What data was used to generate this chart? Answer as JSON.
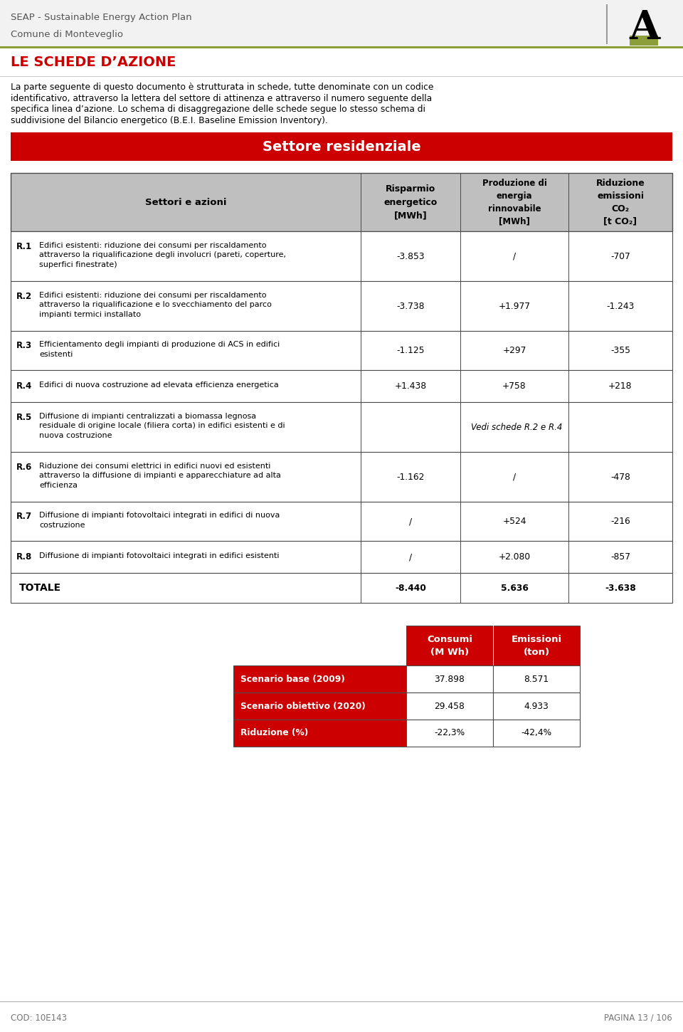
{
  "header_line1": "SEAP - Sustainable Energy Action Plan",
  "header_line2": "Comune di Monteveglio",
  "header_sep_color": "#8B9E3A",
  "section_title": "Settore residenziale",
  "section_bg": "#CC0000",
  "section_fg": "#FFFFFF",
  "page_title": "LE SCHEDE D’AZIONE",
  "page_title_color": "#CC0000",
  "intro_lines": [
    "La parte seguente di questo documento è strutturata in schede, tutte denominate con un codice",
    "identificativo, attraverso la lettera del settore di attinenza e attraverso il numero seguente della",
    "specifica linea d’azione. Lo schema di disaggregazione delle schede segue lo stesso schema di",
    "suddivisione del Bilancio energetico (B.E.I. Baseline Emission Inventory)."
  ],
  "col_header_bg": "#BFBFBF",
  "rows": [
    {
      "id": "R.1",
      "desc_lines": [
        "Edifici esistenti: riduzione dei consumi per riscaldamento",
        "attraverso la riqualificazione degli involucri (pareti, coperture,",
        "superfici finestrate)"
      ],
      "risparmio": "-3.853",
      "produzione": "/",
      "riduzione": "-707",
      "rh": 70
    },
    {
      "id": "R.2",
      "desc_lines": [
        "Edifici esistenti: riduzione dei consumi per riscaldamento",
        "attraverso la riqualificazione e lo svecchiamento del parco",
        "impianti termici installato"
      ],
      "risparmio": "-3.738",
      "produzione": "+1.977",
      "riduzione": "-1.243",
      "rh": 70
    },
    {
      "id": "R.3",
      "desc_lines": [
        "Efficientamento degli impianti di produzione di ACS in edifici",
        "esistenti"
      ],
      "risparmio": "-1.125",
      "produzione": "+297",
      "riduzione": "-355",
      "rh": 55
    },
    {
      "id": "R.4",
      "desc_lines": [
        "Edifici di nuova costruzione ad elevata efficienza energetica"
      ],
      "risparmio": "+1.438",
      "produzione": "+758",
      "riduzione": "+218",
      "rh": 45
    },
    {
      "id": "R.5",
      "desc_lines": [
        "Diffusione di impianti centralizzati a biomassa legnosa",
        "residuale di origine locale (filiera corta) in edifici esistenti e di",
        "nuova costruzione"
      ],
      "risparmio": "",
      "produzione": "Vedi schede R.2 e R.4",
      "riduzione": "",
      "span": true,
      "rh": 70
    },
    {
      "id": "R.6",
      "desc_lines": [
        "Riduzione dei consumi elettrici in edifici nuovi ed esistenti",
        "attraverso la diffusione di impianti e apparecchiature ad alta",
        "efficienza"
      ],
      "risparmio": "-1.162",
      "produzione": "/",
      "riduzione": "-478",
      "rh": 70
    },
    {
      "id": "R.7",
      "desc_lines": [
        "Diffusione di impianti fotovoltaici integrati in edifici di nuova",
        "costruzione"
      ],
      "risparmio": "/",
      "produzione": "+524",
      "riduzione": "-216",
      "rh": 55
    },
    {
      "id": "R.8",
      "desc_lines": [
        "Diffusione di impianti fotovoltaici integrati in edifici esistenti"
      ],
      "risparmio": "/",
      "produzione": "+2.080",
      "riduzione": "-857",
      "rh": 45
    },
    {
      "id": "TOTALE",
      "desc_lines": [],
      "risparmio": "-8.440",
      "produzione": "5.636",
      "riduzione": "-3.638",
      "is_total": true,
      "rh": 42
    }
  ],
  "summary_rows": [
    {
      "label": "Scenario base (2009)",
      "consumi": "37.898",
      "emissioni": "8.571"
    },
    {
      "label": "Scenario obiettivo (2020)",
      "consumi": "29.458",
      "emissioni": "4.933"
    },
    {
      "label": "Riduzione (%)",
      "consumi": "-22,3%",
      "emissioni": "-42,4%"
    }
  ],
  "footer_left": "COD: 10E143",
  "footer_right": "PAGINA 13 / 106"
}
